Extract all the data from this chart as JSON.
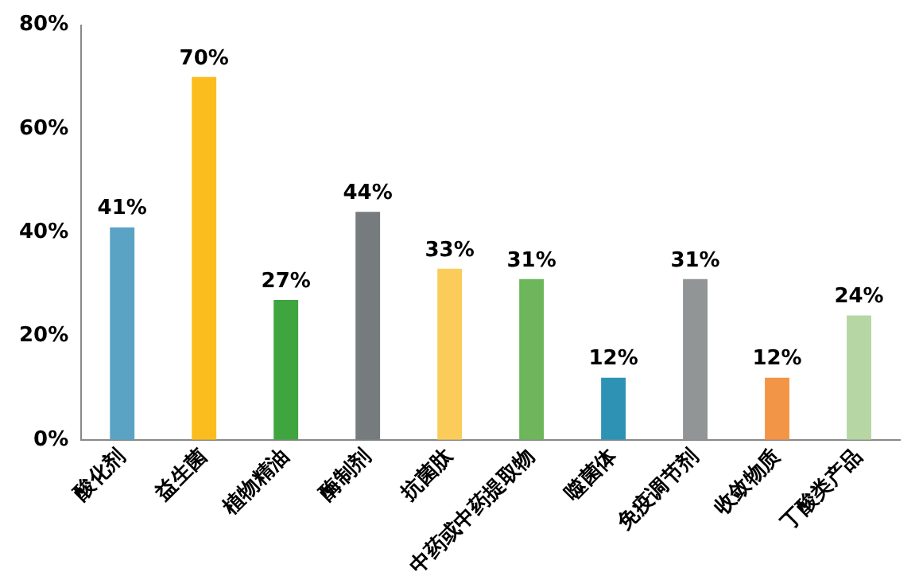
{
  "chart_data": {
    "type": "bar",
    "categories": [
      "酸化剂",
      "益生菌",
      "植物精油",
      "酶制剂",
      "抗菌肽",
      "中药或中药提取物",
      "噬菌体",
      "免疫调节剂",
      "收敛物质",
      "丁酸类产品"
    ],
    "values": [
      41,
      70,
      27,
      44,
      33,
      31,
      12,
      31,
      12,
      24
    ],
    "colors": [
      "#5ba3c4",
      "#fbbd1e",
      "#3fa53f",
      "#767b7d",
      "#fccc5a",
      "#6db65b",
      "#2e92b4",
      "#929596",
      "#f39546",
      "#b6d7a3"
    ],
    "value_labels": [
      "41%",
      "70%",
      "27%",
      "44%",
      "33%",
      "31%",
      "12%",
      "31%",
      "12%",
      "24%"
    ],
    "ylim": [
      0,
      80
    ],
    "yticks": [
      {
        "value": 0,
        "label": "0%"
      },
      {
        "value": 20,
        "label": "20%"
      },
      {
        "value": 40,
        "label": "40%"
      },
      {
        "value": 60,
        "label": "60%"
      },
      {
        "value": 80,
        "label": "80%"
      }
    ],
    "grid": false,
    "legend": false
  }
}
